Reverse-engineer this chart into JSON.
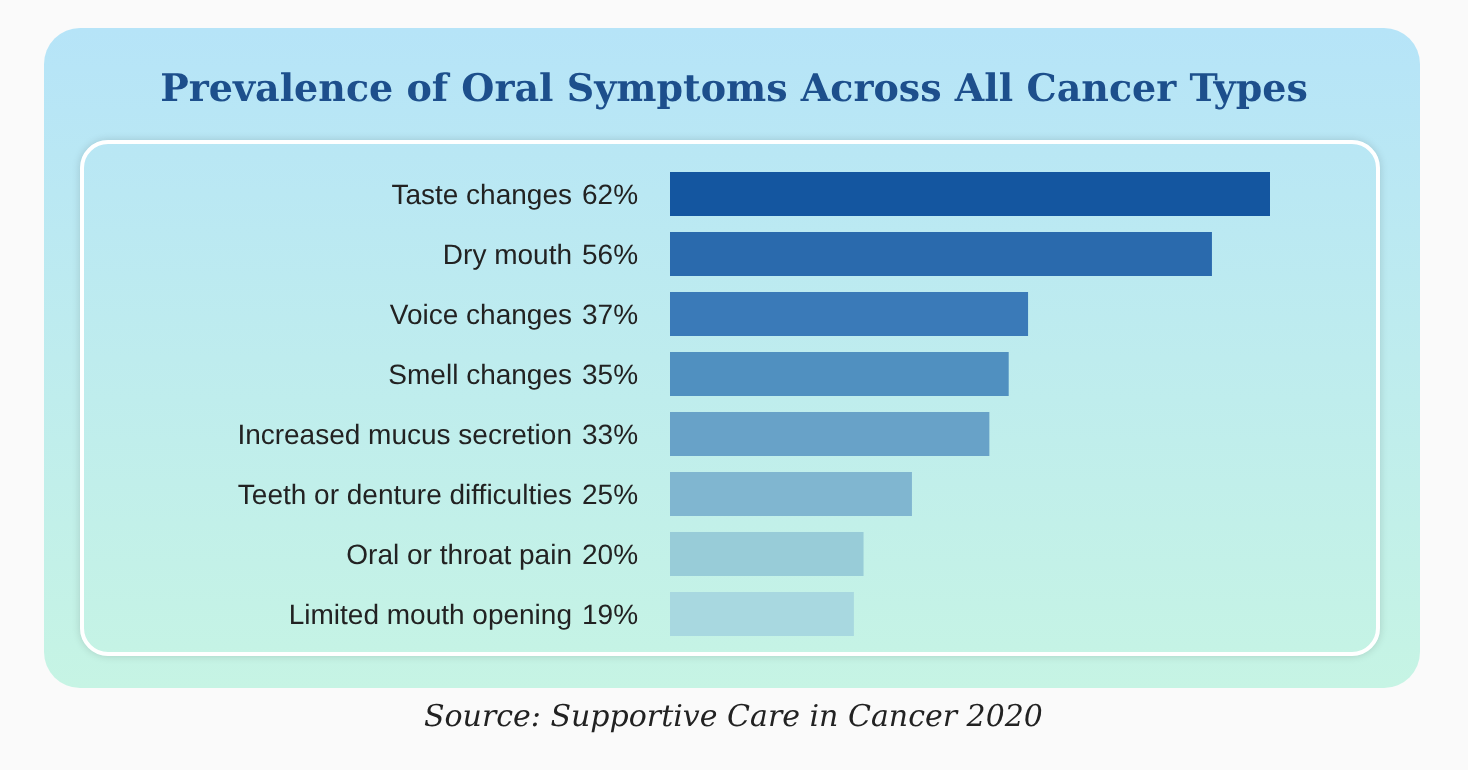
{
  "chart_data": {
    "type": "bar",
    "orientation": "horizontal",
    "title": "Prevalence of Oral Symptoms Across All Cancer Types",
    "categories": [
      "Taste changes",
      "Dry mouth",
      "Voice changes",
      "Smell changes",
      "Increased mucus secretion",
      "Teeth or denture difficulties",
      "Oral or throat pain",
      "Limited mouth opening"
    ],
    "values": [
      62,
      56,
      37,
      35,
      33,
      25,
      20,
      19
    ],
    "value_labels": [
      "62%",
      "56%",
      "37%",
      "35%",
      "33%",
      "25%",
      "20%",
      "19%"
    ],
    "colors": [
      "#1456a0",
      "#2a6aad",
      "#3a7ab8",
      "#5090c0",
      "#68a2c8",
      "#80b6d0",
      "#98ccd8",
      "#a8d8e0"
    ],
    "xlim": [
      0,
      62
    ],
    "annotations": [
      "Source: Supportive Care in Cancer 2020"
    ]
  }
}
